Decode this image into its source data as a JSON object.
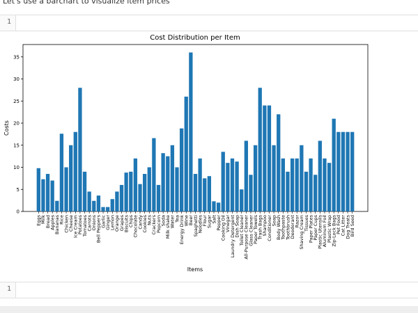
{
  "intro_text": "Let's use a barchart to visualize item prices",
  "cells": [
    {
      "number": "1"
    },
    {
      "number": "1"
    }
  ],
  "chart_data": {
    "type": "bar",
    "title": "Cost Distribution per Item",
    "x_label": "Items",
    "y_label": "Costs",
    "categories": [
      "Eggs",
      "Milk",
      "Bread",
      "Apples",
      "Bananas",
      "Rice",
      "Chicken",
      "Cheese",
      "Ice Cream",
      "Potatoes",
      "Tomatoes",
      "Carrots",
      "Onions",
      "Bell Peppers",
      "Garlic",
      "Ginger",
      "Lemon",
      "Orange",
      "Grapes",
      "Biscuits",
      "Chips",
      "Chocolate",
      "Candy",
      "Cookies",
      "Nuts",
      "Crackers",
      "Popcorn",
      "Soda",
      "Milk shake",
      "Water",
      "Tea",
      "Energy Drink",
      "Wine",
      "Beer",
      "Spaghetti",
      "Noodles",
      "Flour",
      "Sugar",
      "Salt",
      "Pepper",
      "Cooking Oil",
      "Vinegar",
      "Laundry Detergent",
      "Dish Soap",
      "Toilet Cleaner",
      "All-Purpose Cleaner",
      "Glass Cleaner",
      "Paper Towels",
      "Trash Bags",
      "Shampoo",
      "Conditioner",
      "Soap",
      "Body Wash",
      "Toothpaste",
      "Toothbrush",
      "Deodorant",
      "Razor",
      "Shaving Cream",
      "Tissues",
      "Paper Plates",
      "Paper Cups",
      "Plastic Utensils",
      "Aluminum Foil",
      "Plastic Wrap",
      "Zip-Lock Bags",
      "Pet Food",
      "Cat Litter",
      "Dog Treats",
      "Bird Seed"
    ],
    "values": [
      9.8,
      7.3,
      8.5,
      7,
      2.4,
      17.6,
      10,
      15,
      18,
      28,
      9,
      4.5,
      2.4,
      3.6,
      1,
      1,
      2.8,
      4.5,
      6,
      8.8,
      9,
      12,
      6.2,
      8.5,
      10,
      16.6,
      6,
      13.2,
      12.5,
      15,
      10,
      18.8,
      26,
      36,
      8.5,
      12,
      7.5,
      8,
      2.3,
      2,
      13.5,
      11,
      12,
      11.3,
      5,
      16,
      8.3,
      15,
      28,
      24,
      24,
      15,
      22,
      12,
      9,
      12,
      12,
      15,
      9,
      12,
      8.3,
      16,
      12,
      11,
      21,
      18,
      18,
      18,
      18
    ],
    "color": "#1f77b4",
    "ylim": [
      0,
      37.8
    ],
    "yticks": [
      0,
      5,
      10,
      15,
      20,
      25,
      30,
      35
    ],
    "grid": false
  }
}
